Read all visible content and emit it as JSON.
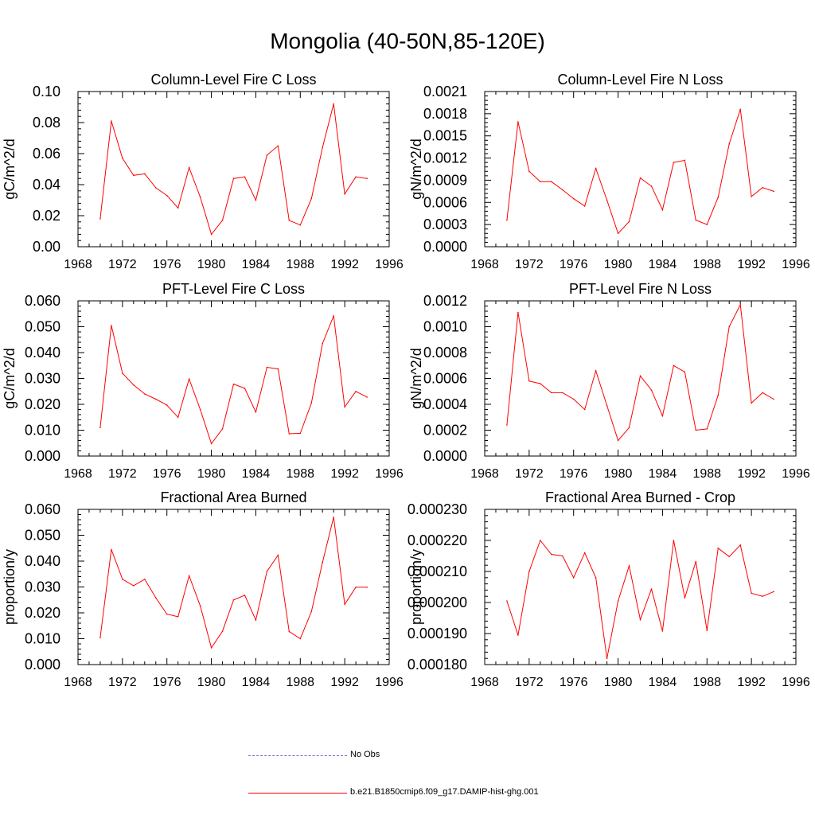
{
  "title": "Mongolia (40-50N,85-120E)",
  "legend": [
    {
      "label": "No Obs",
      "color": "#6a6ad8",
      "style": "dashed"
    },
    {
      "label": "b.e21.B1850cmip6.f09_g17.DAMIP-hist-ghg.001",
      "color": "#ff0000",
      "style": "solid"
    }
  ],
  "chart_data": [
    {
      "type": "line",
      "title": "Column-Level Fire C Loss",
      "ylabel": "gC/m^2/d",
      "xlim": [
        1968,
        1996
      ],
      "ylim": [
        0,
        0.1
      ],
      "xticks": [
        "1968",
        "1972",
        "1976",
        "1980",
        "1984",
        "1988",
        "1992",
        "1996"
      ],
      "yticks": [
        "0.00",
        "0.02",
        "0.04",
        "0.06",
        "0.08",
        "0.10"
      ],
      "x": [
        1970,
        1971,
        1972,
        1973,
        1974,
        1975,
        1976,
        1977,
        1978,
        1979,
        1980,
        1981,
        1982,
        1983,
        1984,
        1985,
        1986,
        1987,
        1988,
        1989,
        1990,
        1991,
        1992,
        1993,
        1994
      ],
      "series": [
        {
          "color": "#ff0000",
          "values": [
            0.018,
            0.081,
            0.057,
            0.046,
            0.047,
            0.038,
            0.033,
            0.025,
            0.051,
            0.032,
            0.008,
            0.017,
            0.044,
            0.045,
            0.03,
            0.059,
            0.065,
            0.017,
            0.014,
            0.031,
            0.064,
            0.092,
            0.034,
            0.045,
            0.044
          ]
        }
      ]
    },
    {
      "type": "line",
      "title": "Column-Level Fire N Loss",
      "ylabel": "gN/m^2/d",
      "xlim": [
        1968,
        1996
      ],
      "ylim": [
        0,
        0.0021
      ],
      "xticks": [
        "1968",
        "1972",
        "1976",
        "1980",
        "1984",
        "1988",
        "1992",
        "1996"
      ],
      "yticks": [
        "0.0000",
        "0.0003",
        "0.0006",
        "0.0009",
        "0.0012",
        "0.0015",
        "0.0018",
        "0.0021"
      ],
      "x": [
        1970,
        1971,
        1972,
        1973,
        1974,
        1975,
        1976,
        1977,
        1978,
        1979,
        1980,
        1981,
        1982,
        1983,
        1984,
        1985,
        1986,
        1987,
        1988,
        1989,
        1990,
        1991,
        1992,
        1993,
        1994
      ],
      "series": [
        {
          "color": "#ff0000",
          "values": [
            0.00036,
            0.00169,
            0.00102,
            0.00088,
            0.00088,
            0.00077,
            0.00065,
            0.00055,
            0.00106,
            0.00063,
            0.00018,
            0.00034,
            0.00093,
            0.00082,
            0.0005,
            0.00114,
            0.00117,
            0.00036,
            0.0003,
            0.00067,
            0.00139,
            0.00186,
            0.00068,
            0.0008,
            0.00075
          ]
        }
      ]
    },
    {
      "type": "line",
      "title": "PFT-Level Fire C Loss",
      "ylabel": "gC/m^2/d",
      "xlim": [
        1968,
        1996
      ],
      "ylim": [
        0,
        0.06
      ],
      "xticks": [
        "1968",
        "1972",
        "1976",
        "1980",
        "1984",
        "1988",
        "1992",
        "1996"
      ],
      "yticks": [
        "0.000",
        "0.010",
        "0.020",
        "0.030",
        "0.040",
        "0.050",
        "0.060"
      ],
      "x": [
        1970,
        1971,
        1972,
        1973,
        1974,
        1975,
        1976,
        1977,
        1978,
        1979,
        1980,
        1981,
        1982,
        1983,
        1984,
        1985,
        1986,
        1987,
        1988,
        1989,
        1990,
        1991,
        1992,
        1993,
        1994
      ],
      "series": [
        {
          "color": "#ff0000",
          "values": [
            0.011,
            0.0505,
            0.032,
            0.0275,
            0.024,
            0.022,
            0.0197,
            0.015,
            0.0298,
            0.018,
            0.0048,
            0.0105,
            0.0278,
            0.0262,
            0.017,
            0.0343,
            0.0337,
            0.0086,
            0.0088,
            0.0205,
            0.0435,
            0.0542,
            0.019,
            0.025,
            0.0228
          ]
        }
      ]
    },
    {
      "type": "line",
      "title": "PFT-Level Fire N Loss",
      "ylabel": "gN/m^2/d",
      "xlim": [
        1968,
        1996
      ],
      "ylim": [
        0,
        0.0012
      ],
      "xticks": [
        "1968",
        "1972",
        "1976",
        "1980",
        "1984",
        "1988",
        "1992",
        "1996"
      ],
      "yticks": [
        "0.0000",
        "0.0002",
        "0.0004",
        "0.0006",
        "0.0008",
        "0.0010",
        "0.0012"
      ],
      "x": [
        1970,
        1971,
        1972,
        1973,
        1974,
        1975,
        1976,
        1977,
        1978,
        1979,
        1980,
        1981,
        1982,
        1983,
        1984,
        1985,
        1986,
        1987,
        1988,
        1989,
        1990,
        1991,
        1992,
        1993,
        1994
      ],
      "series": [
        {
          "color": "#ff0000",
          "values": [
            0.00024,
            0.00111,
            0.00058,
            0.00056,
            0.00049,
            0.00049,
            0.00044,
            0.00036,
            0.00066,
            0.00039,
            0.00012,
            0.00022,
            0.00062,
            0.00051,
            0.00031,
            0.0007,
            0.00065,
            0.0002,
            0.00021,
            0.00047,
            0.001,
            0.00117,
            0.00041,
            0.00049,
            0.00044
          ]
        }
      ]
    },
    {
      "type": "line",
      "title": "Fractional Area Burned",
      "ylabel": "proportion/y",
      "xlim": [
        1968,
        1996
      ],
      "ylim": [
        0,
        0.06
      ],
      "xticks": [
        "1968",
        "1972",
        "1976",
        "1980",
        "1984",
        "1988",
        "1992",
        "1996"
      ],
      "yticks": [
        "0.000",
        "0.010",
        "0.020",
        "0.030",
        "0.040",
        "0.050",
        "0.060"
      ],
      "x": [
        1970,
        1971,
        1972,
        1973,
        1974,
        1975,
        1976,
        1977,
        1978,
        1979,
        1980,
        1981,
        1982,
        1983,
        1984,
        1985,
        1986,
        1987,
        1988,
        1989,
        1990,
        1991,
        1992,
        1993,
        1994
      ],
      "series": [
        {
          "color": "#ff0000",
          "values": [
            0.0104,
            0.0445,
            0.033,
            0.0305,
            0.033,
            0.0258,
            0.0195,
            0.0185,
            0.0343,
            0.0227,
            0.0065,
            0.0129,
            0.025,
            0.0268,
            0.0172,
            0.036,
            0.0423,
            0.0128,
            0.01,
            0.0205,
            0.0395,
            0.057,
            0.0233,
            0.0299,
            0.0299
          ]
        }
      ]
    },
    {
      "type": "line",
      "title": "Fractional Area Burned - Crop",
      "ylabel": "proportion/y",
      "xlim": [
        1968,
        1996
      ],
      "ylim": [
        0.00018,
        0.00023
      ],
      "xticks": [
        "1968",
        "1972",
        "1976",
        "1980",
        "1984",
        "1988",
        "1992",
        "1996"
      ],
      "yticks": [
        "0.000180",
        "0.000190",
        "0.000200",
        "0.000210",
        "0.000220",
        "0.000230"
      ],
      "x": [
        1970,
        1971,
        1972,
        1973,
        1974,
        1975,
        1976,
        1977,
        1978,
        1979,
        1980,
        1981,
        1982,
        1983,
        1984,
        1985,
        1986,
        1987,
        1988,
        1989,
        1990,
        1991,
        1992,
        1993,
        1994
      ],
      "series": [
        {
          "color": "#ff0000",
          "values": [
            0.0002005,
            0.0001895,
            0.00021,
            0.00022,
            0.0002155,
            0.000215,
            0.000208,
            0.000216,
            0.000208,
            0.000182,
            0.0002005,
            0.0002118,
            0.0001945,
            0.0002043,
            0.0001908,
            0.00022,
            0.0002015,
            0.0002132,
            0.000191,
            0.0002175,
            0.0002148,
            0.0002185,
            0.000203,
            0.000202,
            0.0002035
          ]
        }
      ]
    }
  ]
}
